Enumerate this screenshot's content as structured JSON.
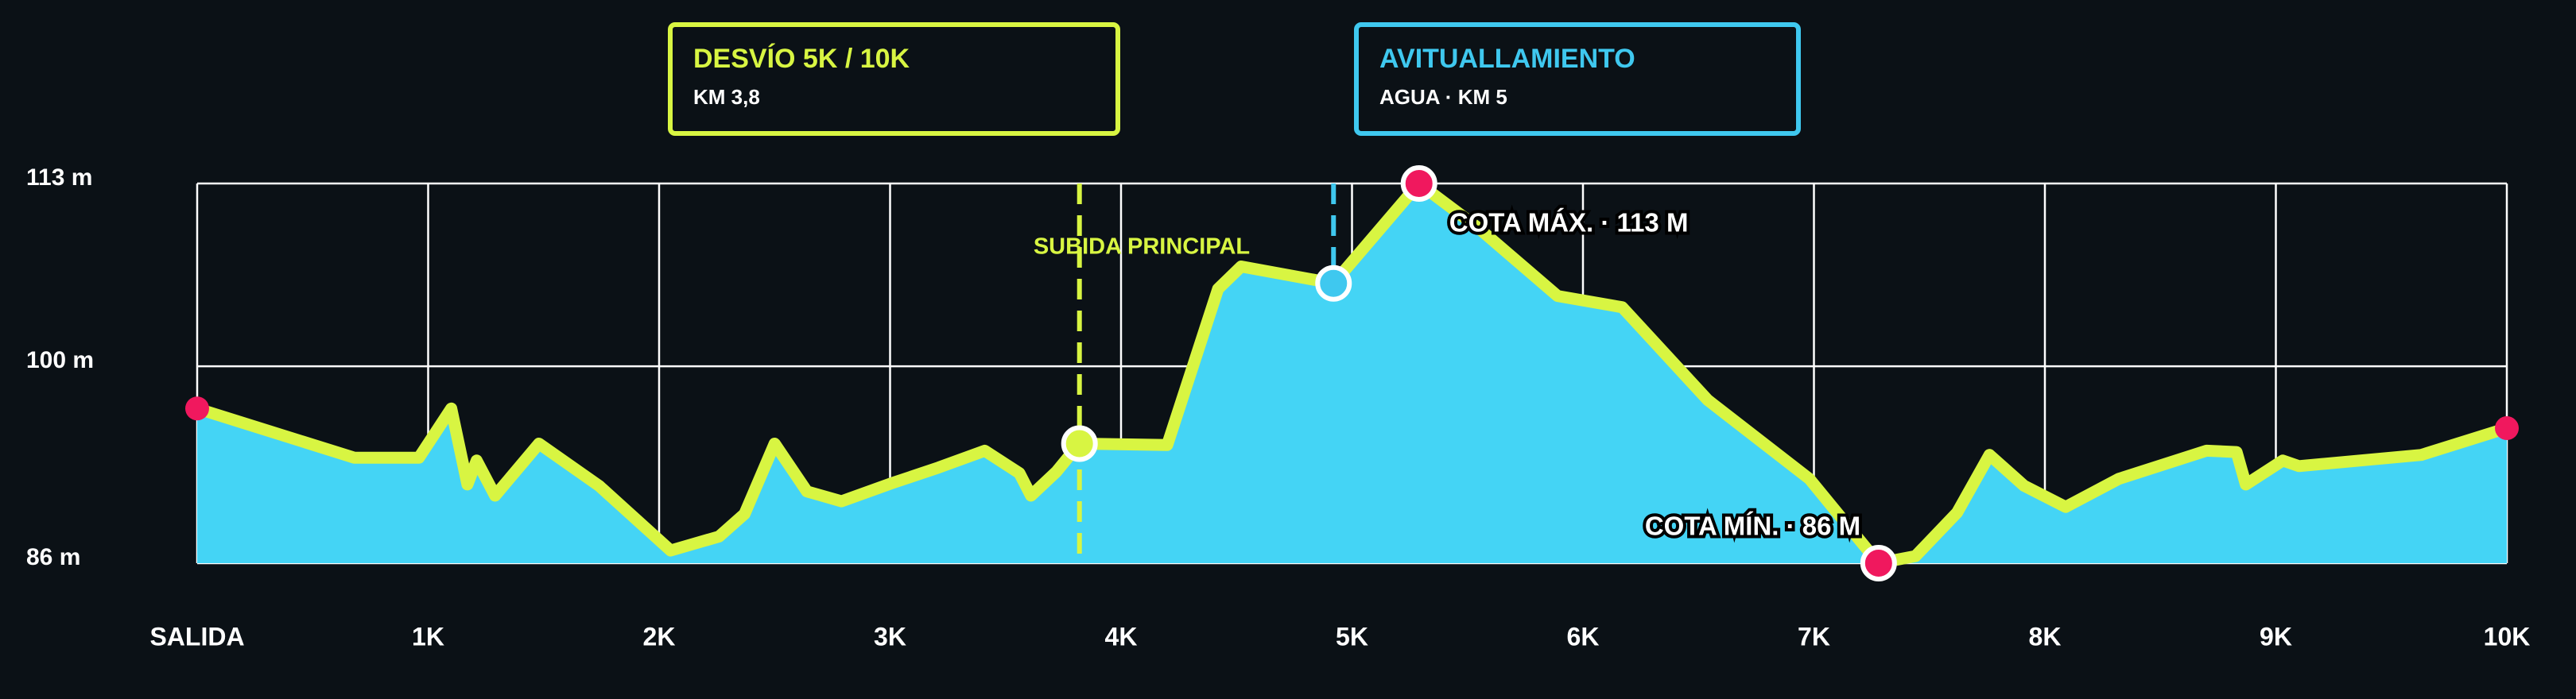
{
  "chart_data": {
    "type": "area",
    "x": [
      0,
      0.68,
      0.96,
      1.1,
      1.17,
      1.21,
      1.29,
      1.48,
      1.74,
      2.05,
      2.26,
      2.37,
      2.5,
      2.64,
      2.79,
      3.01,
      3.21,
      3.41,
      3.56,
      3.61,
      3.72,
      3.82,
      4.2,
      4.42,
      4.52,
      4.92,
      5.29,
      5.55,
      5.89,
      6.17,
      6.54,
      6.98,
      7.28,
      7.44,
      7.62,
      7.76,
      7.91,
      8.09,
      8.32,
      8.7,
      8.83,
      8.87,
      9.03,
      9.1,
      9.63,
      10.0
    ],
    "values": [
      97.0,
      93.5,
      93.5,
      97.0,
      91.6,
      93.3,
      90.8,
      94.5,
      91.5,
      86.9,
      87.9,
      89.5,
      94.5,
      91.1,
      90.4,
      91.7,
      92.8,
      94.0,
      92.4,
      90.8,
      92.5,
      94.5,
      94.4,
      105.5,
      107.1,
      105.9,
      113,
      109.8,
      105.0,
      104.2,
      97.6,
      92.0,
      86.0,
      86.5,
      89.6,
      93.7,
      91.5,
      90.0,
      92.0,
      94.0,
      93.9,
      91.6,
      93.3,
      92.9,
      93.7,
      95.6
    ],
    "color": "#44d4f5",
    "line_color": "#d8f542",
    "endpoint_color": "#f0185e",
    "xlim": [
      0,
      10
    ],
    "xticks": [
      {
        "value": 0,
        "label": "SALIDA"
      },
      {
        "value": 1,
        "label": "1K"
      },
      {
        "value": 2,
        "label": "2K"
      },
      {
        "value": 3,
        "label": "3K"
      },
      {
        "value": 4,
        "label": "4K"
      },
      {
        "value": 5,
        "label": "5K"
      },
      {
        "value": 6,
        "label": "6K"
      },
      {
        "value": 7,
        "label": "7K"
      },
      {
        "value": 8,
        "label": "8K"
      },
      {
        "value": 9,
        "label": "9K"
      },
      {
        "value": 10,
        "label": "10K"
      }
    ],
    "ylim": [
      86,
      113
    ],
    "yticks": [
      {
        "value": 113,
        "label": "113 m"
      },
      {
        "value": 100,
        "label": "100 m"
      },
      {
        "value": 86,
        "label": "86 m"
      }
    ],
    "grid": true,
    "callouts": [
      {
        "title": "DESVÍO 5K / 10K",
        "detail": "KM 3,8",
        "x": 3.82,
        "color": "#d8f542"
      },
      {
        "title": "AVITUALLAMIENTO",
        "detail": "AGUA · KM 5",
        "x": 4.92,
        "color": "#3fc8ef"
      }
    ],
    "annotations": [
      {
        "text": "SUBIDA PRINCIPAL",
        "color": "#d8f542"
      },
      {
        "text": "COTA MÁX. · 113 M",
        "x": 5.29,
        "y": 113,
        "color": "#f0185e"
      },
      {
        "text": "COTA MÍN. · 86 M",
        "x": 7.28,
        "y": 86,
        "color": "#f0185e"
      }
    ]
  }
}
